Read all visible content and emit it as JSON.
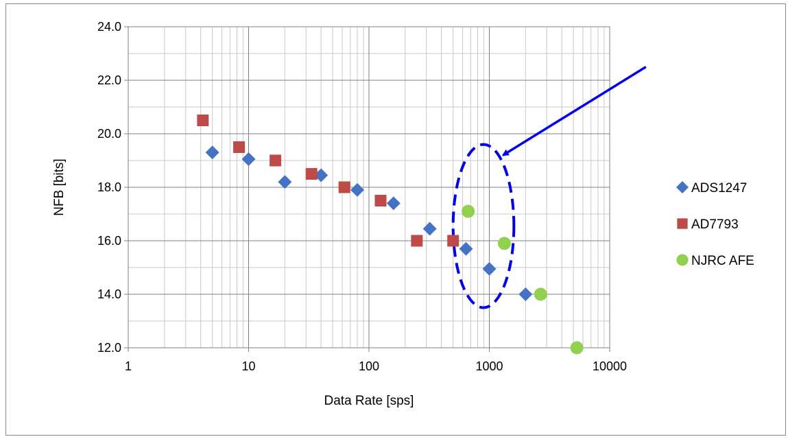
{
  "chart_data": {
    "type": "scatter",
    "xlabel": "Data Rate [sps]",
    "ylabel": "NFB [bits]",
    "xscale": "log",
    "xlim": [
      1,
      10000
    ],
    "ylim": [
      12,
      24
    ],
    "x_ticks": [
      1,
      10,
      100,
      1000,
      10000
    ],
    "x_tick_labels": [
      "1",
      "10",
      "100",
      "1000",
      "10000"
    ],
    "y_ticks": [
      12,
      14,
      16,
      18,
      20,
      22,
      24
    ],
    "y_tick_labels": [
      "12.0",
      "14.0",
      "16.0",
      "18.0",
      "20.0",
      "22.0",
      "24.0"
    ],
    "grid": true,
    "legend_position": "right",
    "series": [
      {
        "name": "ADS1247",
        "marker": "diamond",
        "color": "#4472C4",
        "x": [
          5,
          10,
          20,
          40,
          80,
          160,
          320,
          640,
          1000,
          2000
        ],
        "y": [
          19.3,
          19.05,
          18.2,
          18.45,
          17.9,
          17.4,
          16.45,
          15.7,
          14.95,
          14.0
        ]
      },
      {
        "name": "AD7793",
        "marker": "square",
        "color": "#BE4B48",
        "x": [
          4.17,
          8.33,
          16.7,
          33.3,
          62.5,
          125,
          250,
          500
        ],
        "y": [
          20.5,
          19.5,
          19.0,
          18.5,
          18.0,
          17.5,
          16.0,
          16.0
        ]
      },
      {
        "name": "NJRC AFE",
        "marker": "circle",
        "color": "#92D050",
        "x": [
          667,
          1333,
          2667,
          5333
        ],
        "y": [
          17.1,
          15.9,
          14.0,
          12.0
        ]
      }
    ],
    "annotations": [
      {
        "type": "dashed-ellipse",
        "color": "#0000EE",
        "center": [
          1000,
          16.6
        ],
        "x_range": [
          500,
          1600
        ],
        "y_range": [
          13.5,
          19.6
        ]
      },
      {
        "type": "arrow",
        "color": "#0000EE",
        "from": [
          20000,
          22.5
        ],
        "to": [
          1300,
          19.2
        ]
      }
    ]
  }
}
